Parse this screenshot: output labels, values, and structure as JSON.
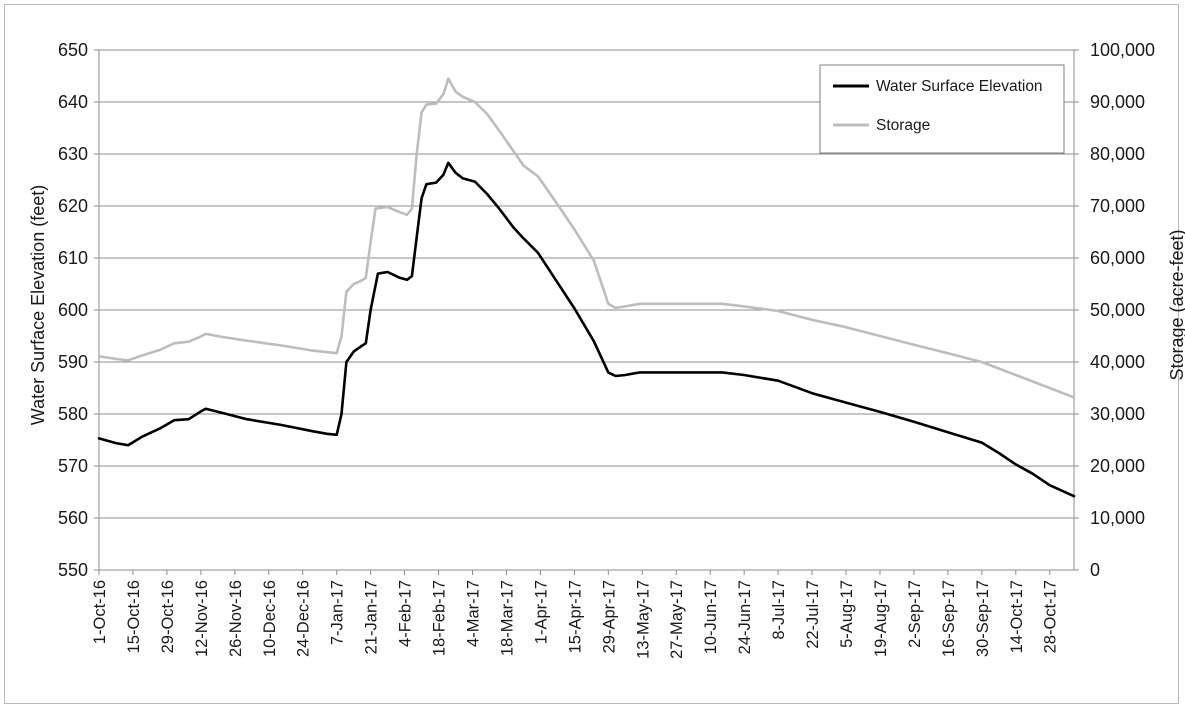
{
  "chart_data": {
    "type": "line",
    "title": "",
    "ylabel": "Water Surface Elevation  (feet)",
    "y2label": "Storage  (acre-feet)",
    "xlabel": "",
    "ylim": [
      550,
      650
    ],
    "y2lim": [
      0,
      100000
    ],
    "yticks": [
      "550",
      "560",
      "570",
      "580",
      "590",
      "600",
      "610",
      "620",
      "630",
      "640",
      "650"
    ],
    "y2ticks": [
      "0",
      "10,000",
      "20,000",
      "30,000",
      "40,000",
      "50,000",
      "60,000",
      "70,000",
      "80,000",
      "90,000",
      "100,000"
    ],
    "xlim": [
      "2016-10-01",
      "2017-11-07"
    ],
    "xticks": [
      {
        "date": "2016-10-01",
        "label": "1-Oct-16"
      },
      {
        "date": "2016-10-15",
        "label": "15-Oct-16"
      },
      {
        "date": "2016-10-29",
        "label": "29-Oct-16"
      },
      {
        "date": "2016-11-12",
        "label": "12-Nov-16"
      },
      {
        "date": "2016-11-26",
        "label": "26-Nov-16"
      },
      {
        "date": "2016-12-10",
        "label": "10-Dec-16"
      },
      {
        "date": "2016-12-24",
        "label": "24-Dec-16"
      },
      {
        "date": "2017-01-07",
        "label": "7-Jan-17"
      },
      {
        "date": "2017-01-21",
        "label": "21-Jan-17"
      },
      {
        "date": "2017-02-04",
        "label": "4-Feb-17"
      },
      {
        "date": "2017-02-18",
        "label": "18-Feb-17"
      },
      {
        "date": "2017-03-04",
        "label": "4-Mar-17"
      },
      {
        "date": "2017-03-18",
        "label": "18-Mar-17"
      },
      {
        "date": "2017-04-01",
        "label": "1-Apr-17"
      },
      {
        "date": "2017-04-15",
        "label": "15-Apr-17"
      },
      {
        "date": "2017-04-29",
        "label": "29-Apr-17"
      },
      {
        "date": "2017-05-13",
        "label": "13-May-17"
      },
      {
        "date": "2017-05-27",
        "label": "27-May-17"
      },
      {
        "date": "2017-06-10",
        "label": "10-Jun-17"
      },
      {
        "date": "2017-06-24",
        "label": "24-Jun-17"
      },
      {
        "date": "2017-07-08",
        "label": "8-Jul-17"
      },
      {
        "date": "2017-07-22",
        "label": "22-Jul-17"
      },
      {
        "date": "2017-08-05",
        "label": "5-Aug-17"
      },
      {
        "date": "2017-08-19",
        "label": "19-Aug-17"
      },
      {
        "date": "2017-09-02",
        "label": "2-Sep-17"
      },
      {
        "date": "2017-09-16",
        "label": "16-Sep-17"
      },
      {
        "date": "2017-09-30",
        "label": "30-Sep-17"
      },
      {
        "date": "2017-10-14",
        "label": "14-Oct-17"
      },
      {
        "date": "2017-10-28",
        "label": "28-Oct-17"
      }
    ],
    "grid": true,
    "legend_position": "top-right",
    "series": [
      {
        "name": "Water Surface Elevation",
        "axis": "left",
        "color": "#000000",
        "points": [
          [
            "2016-10-01",
            575.3
          ],
          [
            "2016-10-08",
            574.4
          ],
          [
            "2016-10-13",
            574.0
          ],
          [
            "2016-10-19",
            575.7
          ],
          [
            "2016-10-26",
            577.2
          ],
          [
            "2016-11-01",
            578.8
          ],
          [
            "2016-11-07",
            579.0
          ],
          [
            "2016-11-12",
            580.5
          ],
          [
            "2016-11-14",
            581.0
          ],
          [
            "2016-11-21",
            580.2
          ],
          [
            "2016-12-01",
            579.0
          ],
          [
            "2016-12-15",
            577.9
          ],
          [
            "2016-12-28",
            576.7
          ],
          [
            "2017-01-03",
            576.2
          ],
          [
            "2017-01-07",
            576.0
          ],
          [
            "2017-01-09",
            580.0
          ],
          [
            "2017-01-11",
            590.0
          ],
          [
            "2017-01-14",
            592.0
          ],
          [
            "2017-01-17",
            593.0
          ],
          [
            "2017-01-19",
            593.6
          ],
          [
            "2017-01-21",
            600.0
          ],
          [
            "2017-01-24",
            607.0
          ],
          [
            "2017-01-28",
            607.3
          ],
          [
            "2017-02-02",
            606.2
          ],
          [
            "2017-02-05",
            605.8
          ],
          [
            "2017-02-07",
            606.5
          ],
          [
            "2017-02-09",
            614.0
          ],
          [
            "2017-02-11",
            621.5
          ],
          [
            "2017-02-13",
            624.2
          ],
          [
            "2017-02-17",
            624.5
          ],
          [
            "2017-02-20",
            626.0
          ],
          [
            "2017-02-22",
            628.3
          ],
          [
            "2017-02-25",
            626.4
          ],
          [
            "2017-02-28",
            625.3
          ],
          [
            "2017-03-05",
            624.7
          ],
          [
            "2017-03-10",
            622.3
          ],
          [
            "2017-03-15",
            619.5
          ],
          [
            "2017-03-21",
            615.8
          ],
          [
            "2017-03-25",
            613.8
          ],
          [
            "2017-03-31",
            611.0
          ],
          [
            "2017-04-07",
            606.0
          ],
          [
            "2017-04-15",
            600.3
          ],
          [
            "2017-04-23",
            594.0
          ],
          [
            "2017-04-29",
            588.0
          ],
          [
            "2017-05-02",
            587.3
          ],
          [
            "2017-05-06",
            587.5
          ],
          [
            "2017-05-12",
            588.0
          ],
          [
            "2017-06-15",
            588.0
          ],
          [
            "2017-06-24",
            587.5
          ],
          [
            "2017-07-08",
            586.4
          ],
          [
            "2017-07-22",
            584.0
          ],
          [
            "2017-08-05",
            582.2
          ],
          [
            "2017-08-19",
            580.4
          ],
          [
            "2017-09-02",
            578.5
          ],
          [
            "2017-09-16",
            576.5
          ],
          [
            "2017-09-30",
            574.5
          ],
          [
            "2017-10-07",
            572.5
          ],
          [
            "2017-10-14",
            570.3
          ],
          [
            "2017-10-21",
            568.5
          ],
          [
            "2017-10-28",
            566.3
          ],
          [
            "2017-11-07",
            564.2
          ]
        ]
      },
      {
        "name": "Storage",
        "axis": "right",
        "color": "#bdbdbd",
        "points": [
          [
            "2016-10-01",
            41100
          ],
          [
            "2016-10-08",
            40600
          ],
          [
            "2016-10-13",
            40300
          ],
          [
            "2016-10-19",
            41300
          ],
          [
            "2016-10-26",
            42300
          ],
          [
            "2016-11-01",
            43600
          ],
          [
            "2016-11-07",
            43900
          ],
          [
            "2016-11-12",
            44900
          ],
          [
            "2016-11-14",
            45400
          ],
          [
            "2016-11-21",
            44800
          ],
          [
            "2016-12-01",
            44100
          ],
          [
            "2016-12-15",
            43200
          ],
          [
            "2016-12-28",
            42200
          ],
          [
            "2017-01-07",
            41700
          ],
          [
            "2017-01-09",
            45000
          ],
          [
            "2017-01-11",
            53500
          ],
          [
            "2017-01-14",
            55000
          ],
          [
            "2017-01-17",
            55600
          ],
          [
            "2017-01-19",
            56200
          ],
          [
            "2017-01-21",
            63000
          ],
          [
            "2017-01-23",
            69500
          ],
          [
            "2017-01-28",
            69800
          ],
          [
            "2017-02-02",
            68800
          ],
          [
            "2017-02-05",
            68300
          ],
          [
            "2017-02-07",
            69500
          ],
          [
            "2017-02-09",
            80000
          ],
          [
            "2017-02-11",
            88000
          ],
          [
            "2017-02-13",
            89500
          ],
          [
            "2017-02-17",
            89700
          ],
          [
            "2017-02-20",
            91500
          ],
          [
            "2017-02-22",
            94500
          ],
          [
            "2017-02-25",
            92000
          ],
          [
            "2017-02-28",
            91000
          ],
          [
            "2017-03-05",
            90000
          ],
          [
            "2017-03-10",
            87700
          ],
          [
            "2017-03-15",
            84500
          ],
          [
            "2017-03-21",
            80500
          ],
          [
            "2017-03-25",
            77800
          ],
          [
            "2017-03-31",
            75700
          ],
          [
            "2017-04-07",
            71000
          ],
          [
            "2017-04-15",
            65500
          ],
          [
            "2017-04-23",
            59500
          ],
          [
            "2017-04-29",
            51200
          ],
          [
            "2017-05-02",
            50400
          ],
          [
            "2017-05-06",
            50700
          ],
          [
            "2017-05-12",
            51200
          ],
          [
            "2017-06-15",
            51200
          ],
          [
            "2017-06-24",
            50700
          ],
          [
            "2017-07-08",
            49800
          ],
          [
            "2017-07-22",
            48100
          ],
          [
            "2017-08-05",
            46700
          ],
          [
            "2017-08-19",
            45000
          ],
          [
            "2017-09-02",
            43300
          ],
          [
            "2017-09-16",
            41700
          ],
          [
            "2017-09-30",
            40000
          ],
          [
            "2017-10-14",
            37500
          ],
          [
            "2017-10-28",
            35000
          ],
          [
            "2017-11-07",
            33200
          ]
        ]
      }
    ]
  }
}
